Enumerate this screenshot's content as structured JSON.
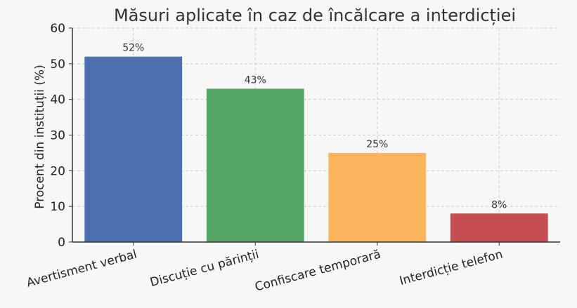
{
  "chart_data": {
    "type": "bar",
    "title": "Măsuri aplicate în caz de încălcare a interdicției",
    "xlabel": "",
    "ylabel": "Procent din instituții (%)",
    "ylim": [
      0,
      60
    ],
    "yticks": [
      0,
      10,
      20,
      30,
      40,
      50,
      60
    ],
    "grid": true,
    "categories": [
      "Avertisment verbal",
      "Discuție cu părinții",
      "Confiscare temporară",
      "Interdicție telefon"
    ],
    "values": [
      52,
      43,
      25,
      8
    ],
    "value_labels": [
      "52%",
      "43%",
      "25%",
      "8%"
    ],
    "colors": [
      "#4c6fae",
      "#55a868",
      "#fbb45c",
      "#c44e52"
    ]
  }
}
